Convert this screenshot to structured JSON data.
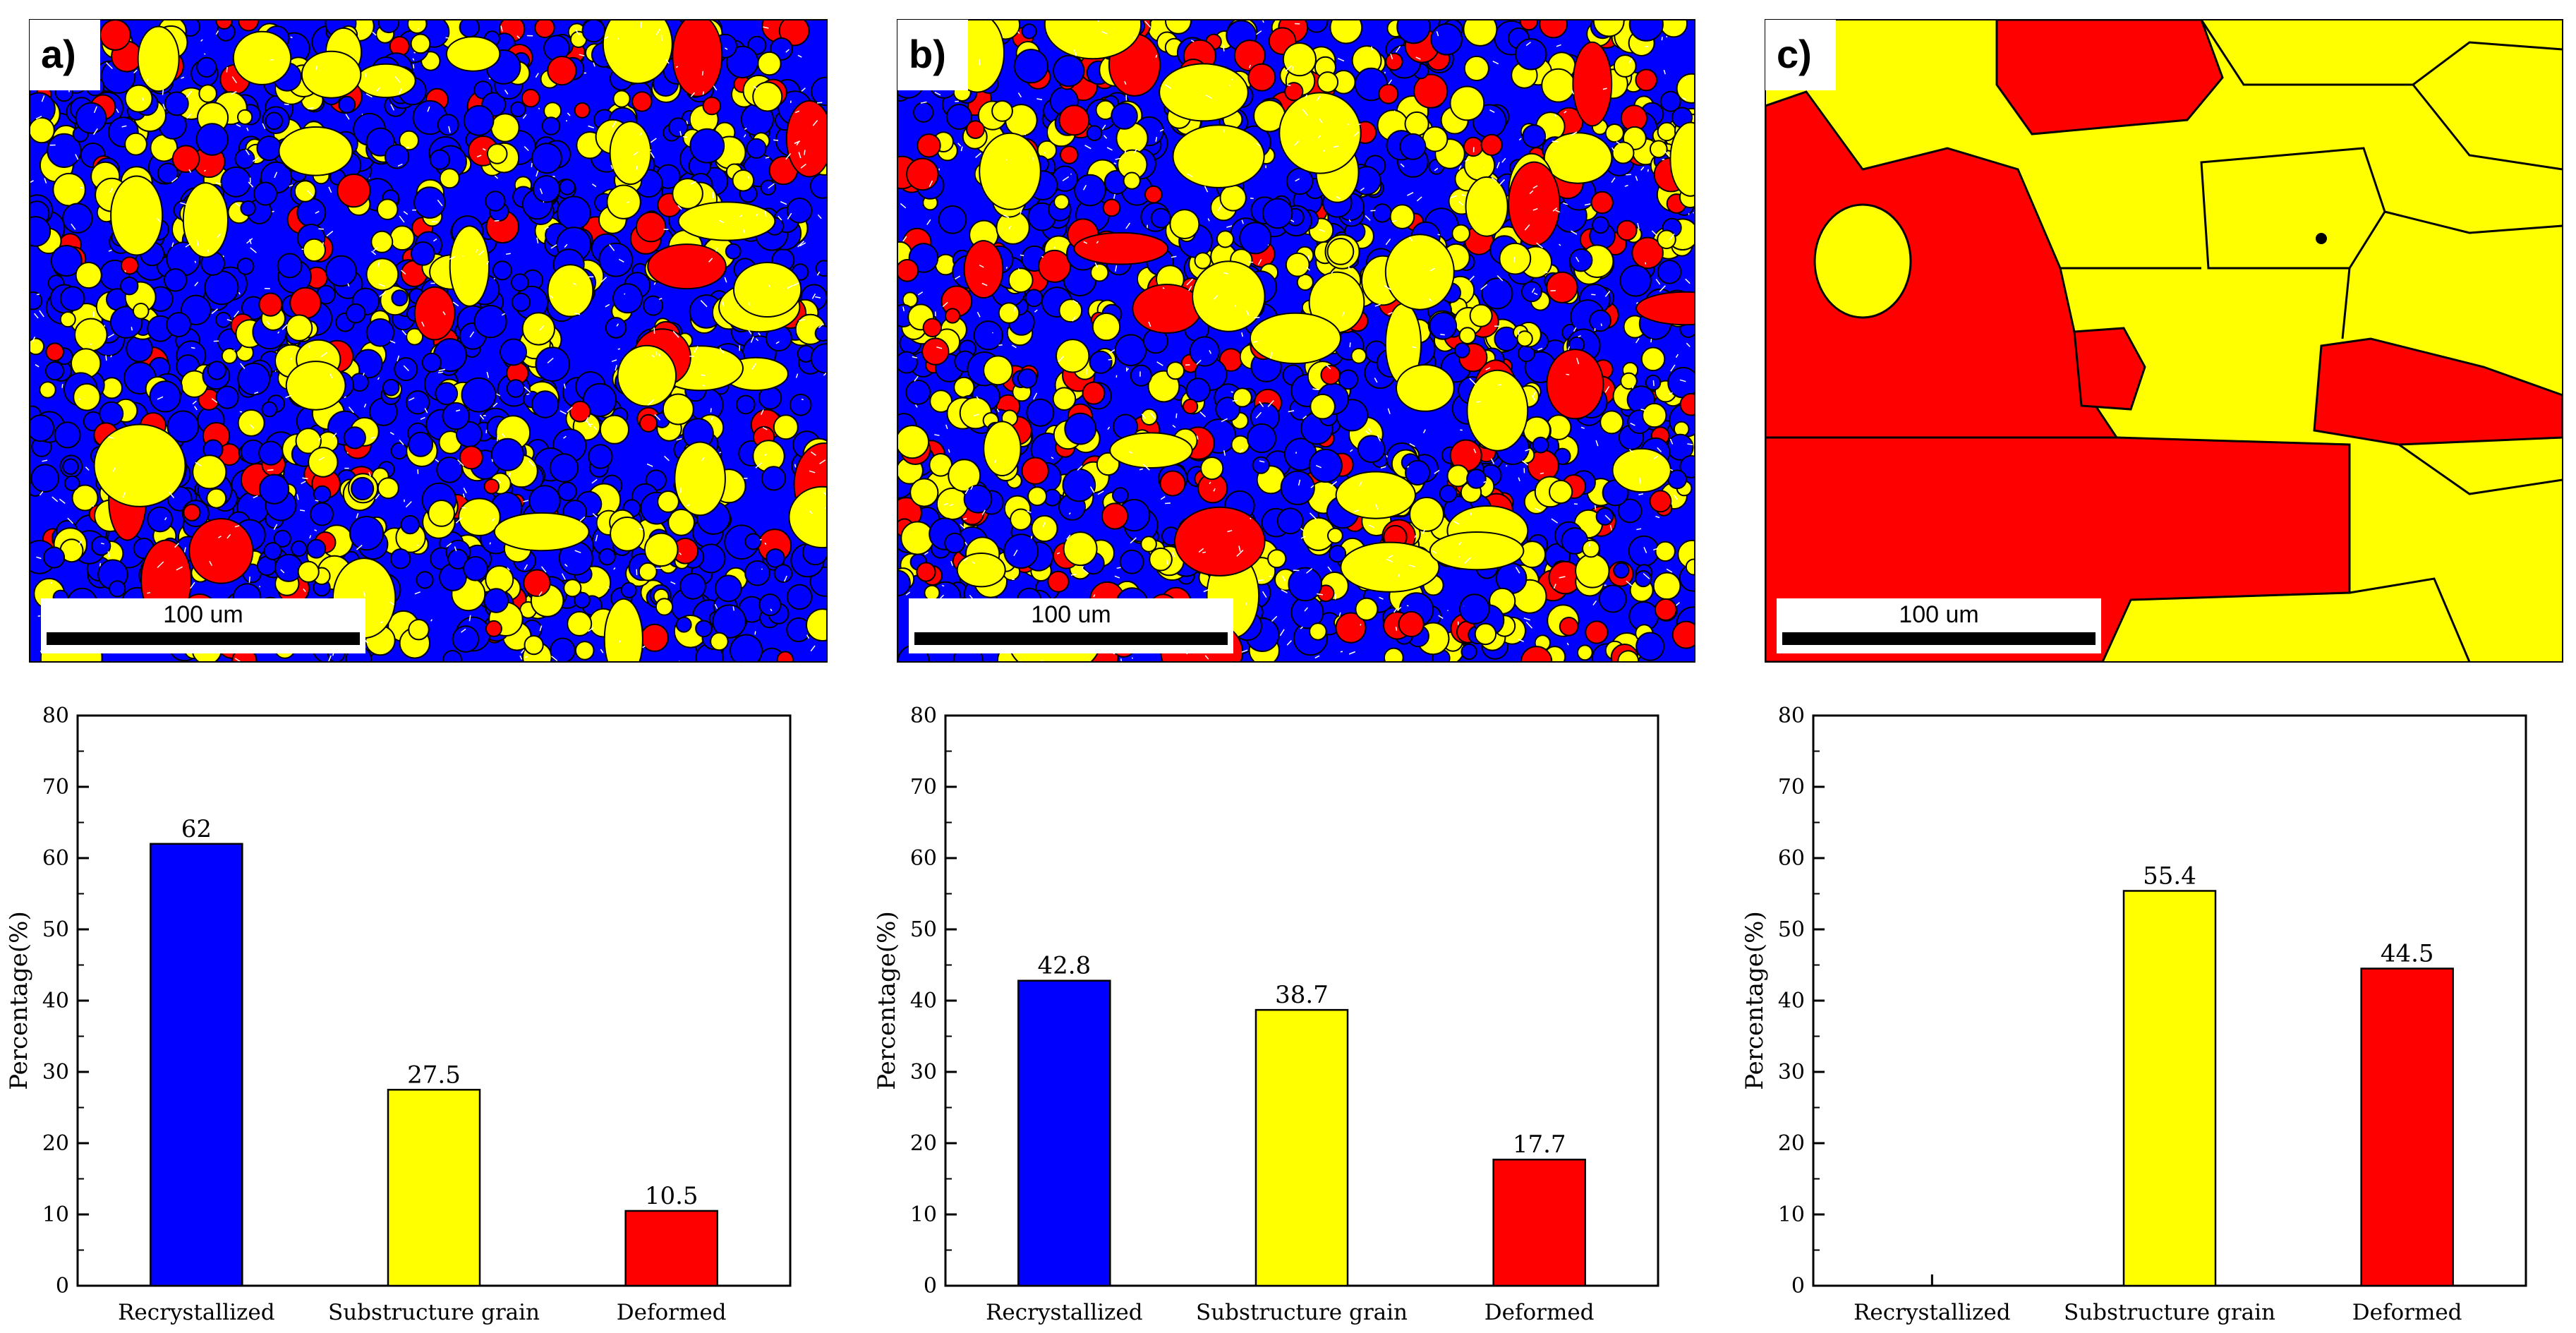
{
  "figure": {
    "category_colors": {
      "Recrystallized": "#0000ff",
      "Substructure grain": "#ffff00",
      "Deformed": "#ff0000"
    },
    "boundary_color": "#000000",
    "substructure_line_color": "#ffffff"
  },
  "maps": [
    {
      "label": "a)",
      "scale_bar_text": "100 um",
      "dominant": "Recrystallized"
    },
    {
      "label": "b)",
      "scale_bar_text": "100 um",
      "dominant": "mixed"
    },
    {
      "label": "c)",
      "scale_bar_text": "100 um",
      "dominant": "Substructure grain"
    }
  ],
  "chart_data": [
    {
      "type": "bar",
      "panel": "a",
      "categories": [
        "Recrystallized",
        "Substructure grain",
        "Deformed"
      ],
      "values": [
        62,
        27.5,
        10.5
      ],
      "value_labels": [
        "62",
        "27.5",
        "10.5"
      ],
      "colors": [
        "#0000ff",
        "#ffff00",
        "#ff0000"
      ],
      "ylabel": "Percentage(%)",
      "xlabel": "",
      "ylim": [
        0,
        80
      ],
      "yticks": [
        0,
        10,
        20,
        30,
        40,
        50,
        60,
        70,
        80
      ],
      "grid": false
    },
    {
      "type": "bar",
      "panel": "b",
      "categories": [
        "Recrystallized",
        "Substructure grain",
        "Deformed"
      ],
      "values": [
        42.8,
        38.7,
        17.7
      ],
      "value_labels": [
        "42.8",
        "38.7",
        "17.7"
      ],
      "colors": [
        "#0000ff",
        "#ffff00",
        "#ff0000"
      ],
      "ylabel": "Percentage(%)",
      "xlabel": "",
      "ylim": [
        0,
        80
      ],
      "yticks": [
        0,
        10,
        20,
        30,
        40,
        50,
        60,
        70,
        80
      ],
      "grid": false
    },
    {
      "type": "bar",
      "panel": "c",
      "categories": [
        "Recrystallized",
        "Substructure grain",
        "Deformed"
      ],
      "values": [
        0,
        55.4,
        44.5
      ],
      "value_labels": [
        "",
        "55.4",
        "44.5"
      ],
      "colors": [
        "#0000ff",
        "#ffff00",
        "#ff0000"
      ],
      "ylabel": "Percentage(%)",
      "xlabel": "",
      "ylim": [
        0,
        80
      ],
      "yticks": [
        0,
        10,
        20,
        30,
        40,
        50,
        60,
        70,
        80
      ],
      "grid": false
    }
  ]
}
